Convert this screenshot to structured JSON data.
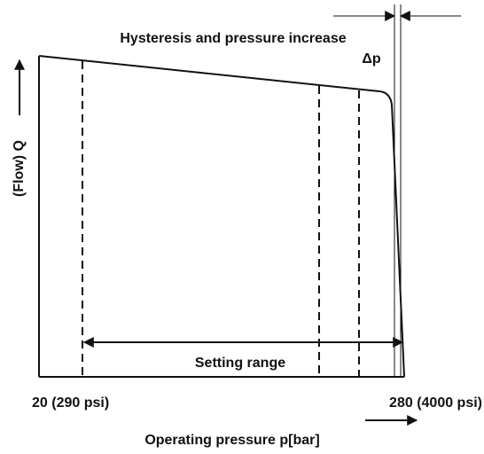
{
  "diagram": {
    "annotation": "Hysteresis and pressure increase",
    "delta_label": "Δp",
    "y_axis_label": "(Flow) Q",
    "range_label": "Setting range",
    "x_min_label": "20 (290 psi)",
    "x_max_label": "280 (4000 psi)",
    "x_axis_label": "Operating pressure p[bar]"
  }
}
